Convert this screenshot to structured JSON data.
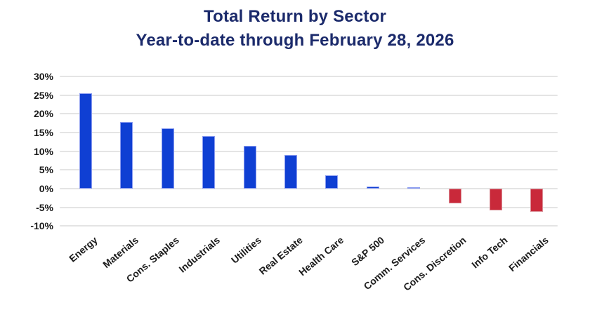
{
  "chart_data": {
    "type": "bar",
    "title": "Total Return by Sector",
    "subtitle": "Year-to-date through February 28, 2026",
    "categories": [
      "Energy",
      "Materials",
      "Cons. Staples",
      "Industrials",
      "Utilities",
      "Real Estate",
      "Health Care",
      "S&P 500",
      "Comm. Services",
      "Cons. Discretion",
      "Info Tech",
      "Financials"
    ],
    "values": [
      25.5,
      17.8,
      16.2,
      14.1,
      11.5,
      9.0,
      3.5,
      0.5,
      0.3,
      -3.9,
      -5.9,
      -6.3
    ],
    "xlabel": "",
    "ylabel": "",
    "y_ticks": [
      30,
      25,
      20,
      15,
      10,
      5,
      0,
      -5,
      -10
    ],
    "y_tick_suffix": "%",
    "ylim": [
      -10,
      30
    ],
    "grid": "horizontal-only",
    "legend": "none",
    "x_label_rotation_deg": -40
  },
  "colors": {
    "title_text": "#1b2a6b",
    "axis_text": "#1a1a1a",
    "gridline": "#e4e4e4",
    "positive_bar_fill": "#0f3fd3",
    "positive_bar_edge": "#8b9cf0",
    "negative_bar_fill": "#c9293a",
    "negative_bar_edge": "#d98b94",
    "background": "#ffffff"
  }
}
